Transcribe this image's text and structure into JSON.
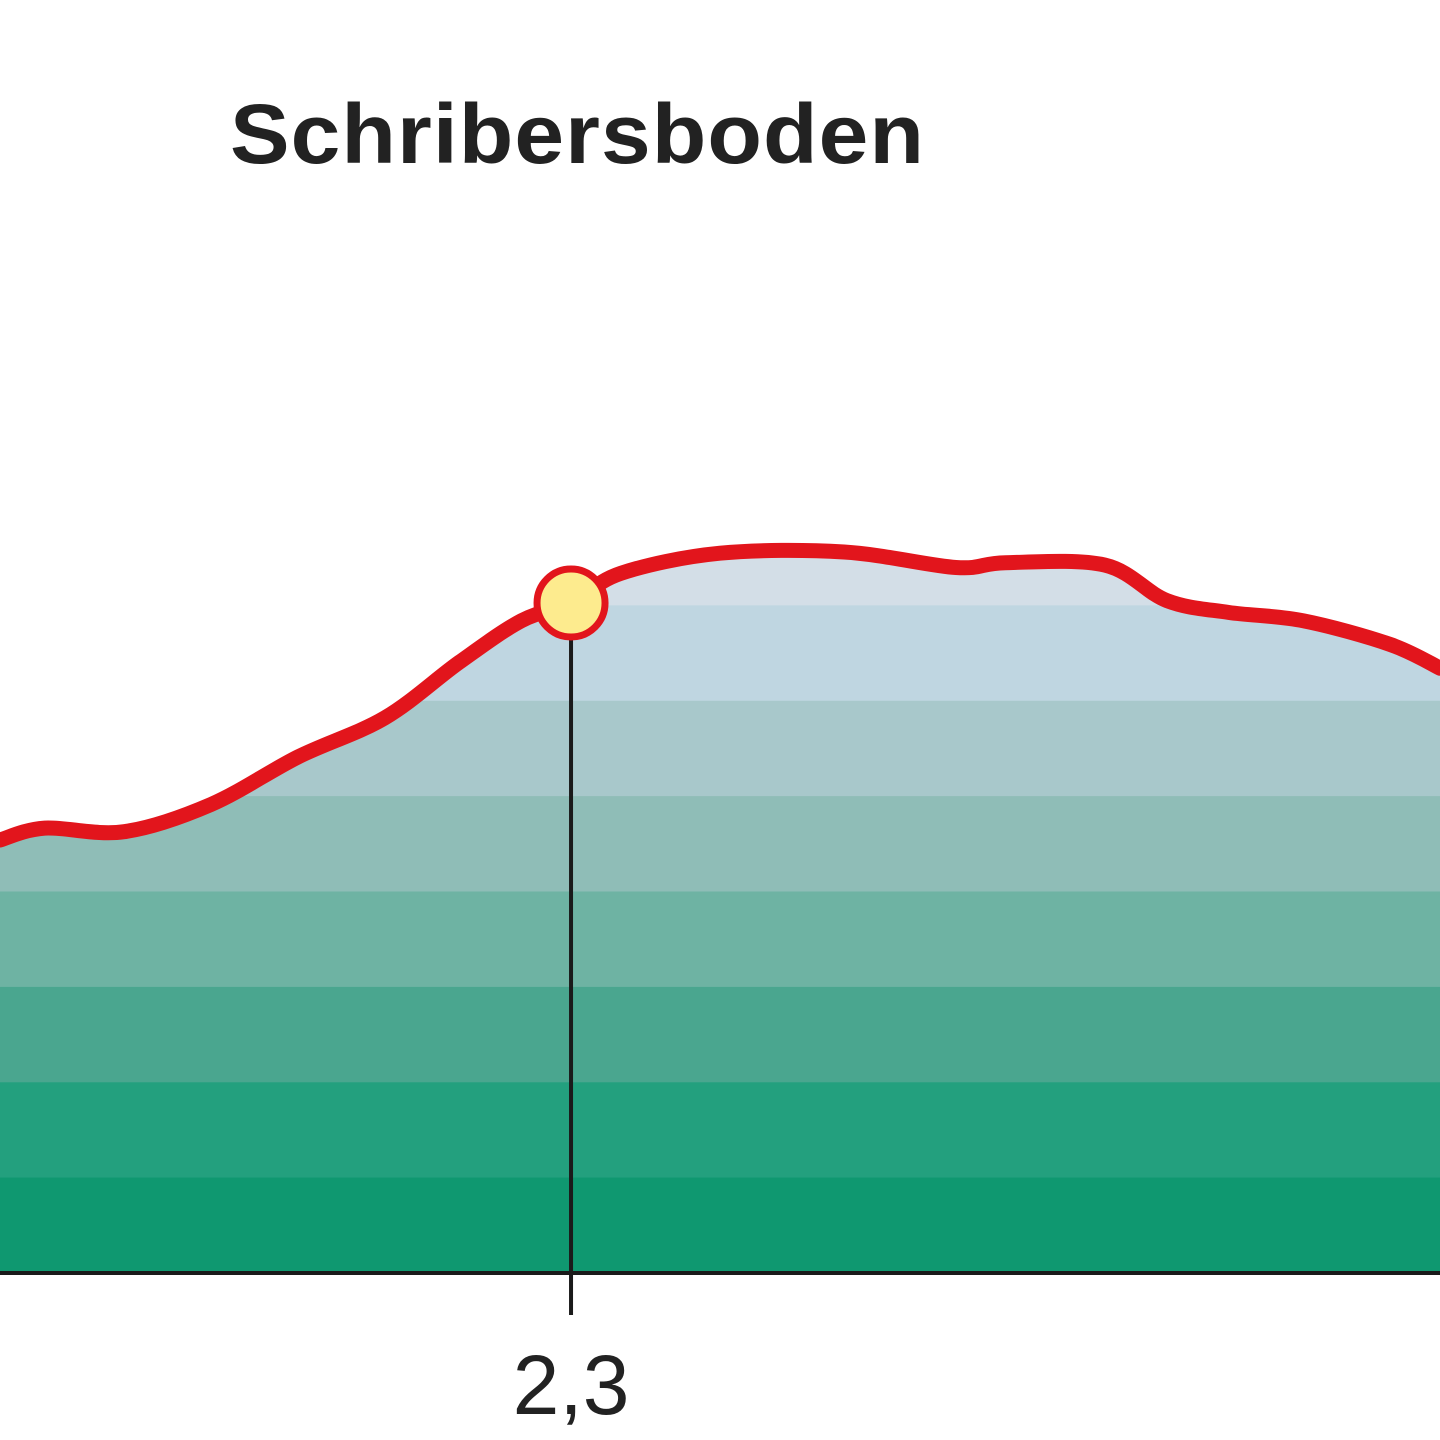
{
  "chart_data": {
    "type": "area",
    "title": "",
    "xlabel": "",
    "ylabel": "",
    "x_visible_range": [
      0,
      5.8
    ],
    "profile": {
      "x": [
        0,
        0.18,
        0.5,
        0.85,
        1.2,
        1.55,
        1.85,
        2.1,
        2.3,
        2.5,
        2.9,
        3.4,
        3.85,
        4.05,
        4.45,
        4.7,
        4.95,
        5.25,
        5.6,
        5.8
      ],
      "y": [
        430,
        440,
        437,
        460,
        500,
        533,
        580,
        615,
        630,
        655,
        672,
        673,
        660,
        664,
        662,
        632,
        622,
        615,
        595,
        575
      ],
      "line_color": "#e2151c"
    },
    "waypoints": [
      {
        "x": 2.3,
        "y": 630,
        "name": "Schribersboden",
        "tick_label": "2,3",
        "marker_color": "#fdeb8e"
      }
    ],
    "colors": {
      "line": "#e2151c",
      "marker_fill": "#fdeb8e",
      "fill_bands_top_to_bottom": [
        "#d3dee7",
        "#bfd6e1",
        "#a8c8cb",
        "#8fbdb7",
        "#6eb3a3",
        "#4aa68f",
        "#23a07e",
        "#0f9870"
      ]
    }
  }
}
